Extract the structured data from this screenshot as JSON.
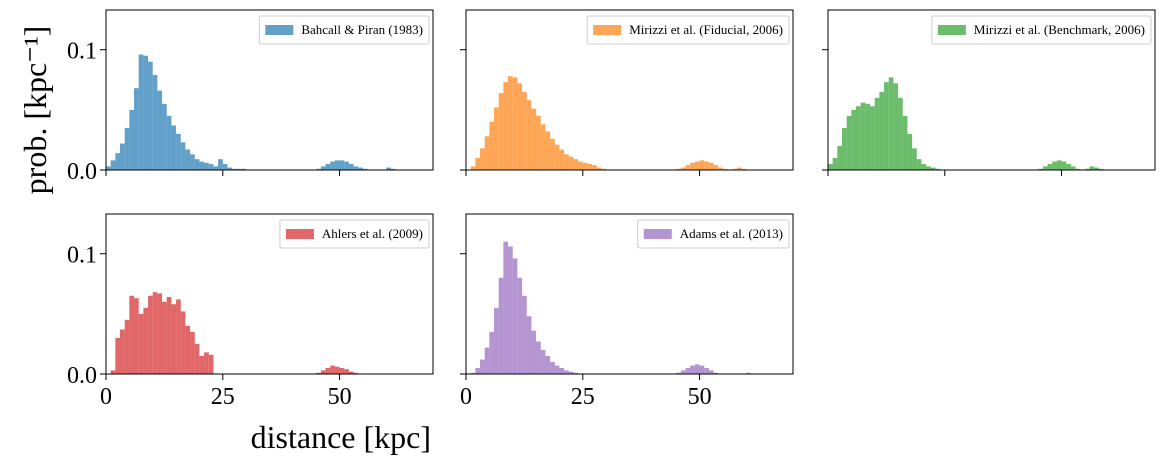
{
  "chart_data": [
    {
      "type": "histogram",
      "alpha": 0.7,
      "legend": "upper right",
      "ylabel": "prob. [kpc⁻¹]",
      "xlim": [
        0,
        70
      ],
      "ylim": [
        0,
        0.133
      ],
      "xticks": [
        0,
        25,
        50
      ],
      "yticks": [
        {
          "value": 0,
          "label": "0.0"
        },
        0.1
      ],
      "bins": [
        0,
        1,
        2,
        3,
        4,
        5,
        6,
        7,
        8,
        9,
        10,
        11,
        12,
        13,
        14,
        15,
        16,
        17,
        18,
        19,
        20,
        21,
        22,
        23,
        24,
        25,
        26,
        27,
        28,
        29,
        30,
        31,
        32,
        33,
        34,
        35,
        36,
        37,
        38,
        39,
        40,
        41,
        42,
        43,
        44,
        45,
        46,
        47,
        48,
        49,
        50,
        51,
        52,
        53,
        54,
        55,
        56,
        57,
        58,
        59,
        60,
        61,
        62,
        63,
        64,
        65
      ],
      "series": [
        {
          "name": "Bahcall & Piran (1983)",
          "color": "#1f77b4",
          "values": [
            0.003,
            0.008,
            0.014,
            0.022,
            0.035,
            0.05,
            0.068,
            0.096,
            0.095,
            0.09,
            0.079,
            0.066,
            0.055,
            0.045,
            0.037,
            0.03,
            0.023,
            0.017,
            0.013,
            0.009,
            0.007,
            0.006,
            0.005,
            0.003,
            0.009,
            0.005,
            0.002,
            0.001,
            0.001,
            0.001,
            0,
            0,
            0,
            0,
            0,
            0,
            0,
            0,
            0,
            0,
            0,
            0,
            0,
            0,
            0,
            0.001,
            0.003,
            0.005,
            0.007,
            0.008,
            0.008,
            0.007,
            0.005,
            0.003,
            0.002,
            0.001,
            0,
            0,
            0,
            0,
            0.002,
            0.001,
            0,
            0,
            0
          ]
        }
      ]
    },
    {
      "type": "histogram",
      "alpha": 0.7,
      "legend": "upper right",
      "xlim": [
        0,
        70
      ],
      "ylim": [
        0,
        0.133
      ],
      "xticks": [
        0,
        25,
        50
      ],
      "yticks": [
        0,
        0.1
      ],
      "bins": [
        0,
        1,
        2,
        3,
        4,
        5,
        6,
        7,
        8,
        9,
        10,
        11,
        12,
        13,
        14,
        15,
        16,
        17,
        18,
        19,
        20,
        21,
        22,
        23,
        24,
        25,
        26,
        27,
        28,
        29,
        30,
        31,
        32,
        33,
        34,
        35,
        36,
        37,
        38,
        39,
        40,
        41,
        42,
        43,
        44,
        45,
        46,
        47,
        48,
        49,
        50,
        51,
        52,
        53,
        54,
        55,
        56,
        57,
        58,
        59,
        60,
        61,
        62,
        63,
        64,
        65
      ],
      "series": [
        {
          "name": "Mirizzi et al. (Fiducial, 2006)",
          "color": "#ff7f0e",
          "values": [
            0,
            0.003,
            0.01,
            0.018,
            0.028,
            0.04,
            0.052,
            0.064,
            0.073,
            0.078,
            0.077,
            0.072,
            0.065,
            0.058,
            0.051,
            0.045,
            0.038,
            0.032,
            0.026,
            0.021,
            0.017,
            0.013,
            0.011,
            0.009,
            0.007,
            0.006,
            0.005,
            0.004,
            0.002,
            0.001,
            0,
            0,
            0,
            0,
            0,
            0,
            0,
            0,
            0,
            0,
            0,
            0,
            0,
            0,
            0,
            0.001,
            0.002,
            0.004,
            0.006,
            0.007,
            0.008,
            0.007,
            0.006,
            0.004,
            0.002,
            0.001,
            0,
            0.001,
            0.002,
            0.001,
            0,
            0,
            0,
            0,
            0
          ]
        }
      ]
    },
    {
      "type": "histogram",
      "alpha": 0.7,
      "legend": "upper right",
      "xlim": [
        0,
        70
      ],
      "ylim": [
        0,
        0.133
      ],
      "xticks": [
        0,
        25,
        50
      ],
      "yticks": [
        0,
        0.1
      ],
      "bins": [
        0,
        1,
        2,
        3,
        4,
        5,
        6,
        7,
        8,
        9,
        10,
        11,
        12,
        13,
        14,
        15,
        16,
        17,
        18,
        19,
        20,
        21,
        22,
        23,
        24,
        25,
        26,
        27,
        28,
        29,
        30,
        31,
        32,
        33,
        34,
        35,
        36,
        37,
        38,
        39,
        40,
        41,
        42,
        43,
        44,
        45,
        46,
        47,
        48,
        49,
        50,
        51,
        52,
        53,
        54,
        55,
        56,
        57,
        58,
        59,
        60,
        61,
        62,
        63,
        64,
        65
      ],
      "series": [
        {
          "name": "Mirizzi et al. (Benchmark, 2006)",
          "color": "#2ca02c",
          "values": [
            0.005,
            0.01,
            0.02,
            0.035,
            0.045,
            0.05,
            0.053,
            0.056,
            0.055,
            0.053,
            0.06,
            0.065,
            0.073,
            0.077,
            0.072,
            0.06,
            0.045,
            0.03,
            0.018,
            0.009,
            0.005,
            0.003,
            0.002,
            0.001,
            0,
            0,
            0,
            0,
            0,
            0,
            0,
            0,
            0,
            0,
            0,
            0,
            0,
            0,
            0,
            0,
            0,
            0,
            0,
            0,
            0,
            0.001,
            0.003,
            0.005,
            0.007,
            0.008,
            0.007,
            0.005,
            0.003,
            0.001,
            0,
            0.001,
            0.003,
            0.002,
            0.001,
            0,
            0,
            0,
            0,
            0,
            0
          ]
        }
      ]
    },
    {
      "type": "histogram",
      "alpha": 0.7,
      "legend": "upper right",
      "xlabel": "distance [kpc]",
      "xlim": [
        0,
        70
      ],
      "ylim": [
        0,
        0.133
      ],
      "xticks": [
        0,
        25,
        50
      ],
      "yticks": [
        {
          "value": 0,
          "label": "0.0"
        },
        0.1
      ],
      "bins": [
        0,
        1,
        2,
        3,
        4,
        5,
        6,
        7,
        8,
        9,
        10,
        11,
        12,
        13,
        14,
        15,
        16,
        17,
        18,
        19,
        20,
        21,
        22,
        23,
        24,
        25,
        26,
        27,
        28,
        29,
        30,
        31,
        32,
        33,
        34,
        35,
        36,
        37,
        38,
        39,
        40,
        41,
        42,
        43,
        44,
        45,
        46,
        47,
        48,
        49,
        50,
        51,
        52,
        53,
        54,
        55,
        56,
        57,
        58,
        59,
        60,
        61,
        62,
        63,
        64,
        65
      ],
      "series": [
        {
          "name": "Ahlers et al. (2009)",
          "color": "#d62728",
          "values": [
            0,
            0.003,
            0.03,
            0.037,
            0.045,
            0.065,
            0.063,
            0.05,
            0.055,
            0.065,
            0.068,
            0.067,
            0.06,
            0.064,
            0.058,
            0.062,
            0.052,
            0.04,
            0.035,
            0.025,
            0.015,
            0.018,
            0.016,
            0,
            0,
            0,
            0,
            0,
            0,
            0,
            0,
            0,
            0,
            0,
            0,
            0,
            0,
            0,
            0,
            0,
            0,
            0,
            0,
            0,
            0,
            0.001,
            0.003,
            0.005,
            0.007,
            0.006,
            0.005,
            0.004,
            0.002,
            0.001,
            0,
            0,
            0,
            0,
            0,
            0,
            0,
            0,
            0,
            0,
            0
          ]
        }
      ]
    },
    {
      "type": "histogram",
      "alpha": 0.7,
      "legend": "upper right",
      "xlim": [
        0,
        70
      ],
      "ylim": [
        0,
        0.133
      ],
      "xticks": [
        0,
        25,
        50
      ],
      "yticks": [
        0,
        0.1
      ],
      "bins": [
        0,
        1,
        2,
        3,
        4,
        5,
        6,
        7,
        8,
        9,
        10,
        11,
        12,
        13,
        14,
        15,
        16,
        17,
        18,
        19,
        20,
        21,
        22,
        23,
        24,
        25,
        26,
        27,
        28,
        29,
        30,
        31,
        32,
        33,
        34,
        35,
        36,
        37,
        38,
        39,
        40,
        41,
        42,
        43,
        44,
        45,
        46,
        47,
        48,
        49,
        50,
        51,
        52,
        53,
        54,
        55,
        56,
        57,
        58,
        59,
        60,
        61,
        62,
        63,
        64,
        65
      ],
      "series": [
        {
          "name": "Adams et al. (2013)",
          "color": "#9467bd",
          "values": [
            0,
            0.001,
            0.005,
            0.012,
            0.022,
            0.035,
            0.055,
            0.08,
            0.11,
            0.106,
            0.096,
            0.08,
            0.065,
            0.048,
            0.036,
            0.027,
            0.02,
            0.015,
            0.01,
            0.007,
            0.005,
            0.003,
            0.002,
            0.001,
            0,
            0,
            0,
            0,
            0,
            0,
            0,
            0,
            0,
            0,
            0,
            0,
            0,
            0,
            0,
            0,
            0,
            0,
            0,
            0,
            0,
            0.001,
            0.003,
            0.005,
            0.007,
            0.008,
            0.007,
            0.005,
            0.003,
            0.001,
            0,
            0,
            0,
            0,
            0,
            0,
            0.001,
            0,
            0,
            0,
            0
          ]
        }
      ]
    }
  ]
}
